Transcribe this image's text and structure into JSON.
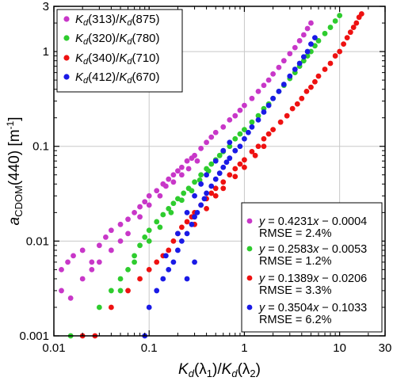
{
  "chart_data": {
    "type": "scatter",
    "xscale": "log",
    "yscale": "log",
    "xlim": [
      0.01,
      30
    ],
    "ylim": [
      0.001,
      3
    ],
    "grid": true,
    "xticks": [
      {
        "value": 0.01,
        "label": "0.01"
      },
      {
        "value": 0.1,
        "label": "0.1"
      },
      {
        "value": 1,
        "label": "1"
      },
      {
        "value": 10,
        "label": "10"
      },
      {
        "value": 30,
        "label": "30"
      }
    ],
    "yticks": [
      {
        "value": 0.001,
        "label": "0.001"
      },
      {
        "value": 0.01,
        "label": "0.01"
      },
      {
        "value": 0.1,
        "label": "0.1"
      },
      {
        "value": 1,
        "label": "1"
      },
      {
        "value": 3,
        "label": "3"
      }
    ],
    "xlabel": {
      "k": "K",
      "d": "d",
      "open": "(λ",
      "one": "1",
      "mid": ")/",
      "two": "2",
      "close": ")"
    },
    "ylabel": {
      "a": "a",
      "sub": "CDOM",
      "rest": "(440) [m",
      "sup": "-1",
      "end": "]"
    },
    "legend_placement": "top-left",
    "series": [
      {
        "legend": {
          "k": "K",
          "d": "d",
          "num": "(313)",
          "slash": "/",
          "den": "(875)"
        },
        "color": "#c837c8",
        "fit": {
          "y": "y",
          "eq_a": " = 0.4231",
          "x": "x",
          "eq_b": " − 0.0004",
          "rmse": "RMSE = 2.4%"
        },
        "points": [
          [
            0.012,
            0.005
          ],
          [
            0.014,
            0.006
          ],
          [
            0.016,
            0.007
          ],
          [
            0.02,
            0.008
          ],
          [
            0.025,
            0.006
          ],
          [
            0.03,
            0.009
          ],
          [
            0.035,
            0.011
          ],
          [
            0.04,
            0.013
          ],
          [
            0.05,
            0.015
          ],
          [
            0.06,
            0.017
          ],
          [
            0.07,
            0.02
          ],
          [
            0.08,
            0.023
          ],
          [
            0.09,
            0.026
          ],
          [
            0.1,
            0.03
          ],
          [
            0.12,
            0.034
          ],
          [
            0.14,
            0.04
          ],
          [
            0.16,
            0.045
          ],
          [
            0.18,
            0.05
          ],
          [
            0.2,
            0.055
          ],
          [
            0.22,
            0.06
          ],
          [
            0.25,
            0.07
          ],
          [
            0.28,
            0.075
          ],
          [
            0.3,
            0.08
          ],
          [
            0.35,
            0.095
          ],
          [
            0.4,
            0.11
          ],
          [
            0.45,
            0.125
          ],
          [
            0.5,
            0.14
          ],
          [
            0.6,
            0.16
          ],
          [
            0.7,
            0.19
          ],
          [
            0.8,
            0.21
          ],
          [
            0.9,
            0.24
          ],
          [
            1.0,
            0.27
          ],
          [
            1.2,
            0.32
          ],
          [
            1.4,
            0.38
          ],
          [
            1.6,
            0.44
          ],
          [
            1.8,
            0.5
          ],
          [
            2.0,
            0.58
          ],
          [
            2.3,
            0.68
          ],
          [
            2.6,
            0.8
          ],
          [
            3.0,
            0.95
          ],
          [
            3.4,
            1.1
          ],
          [
            3.8,
            1.3
          ],
          [
            4.2,
            1.5
          ],
          [
            4.6,
            1.75
          ],
          [
            5.0,
            2.0
          ],
          [
            0.012,
            0.003
          ],
          [
            0.015,
            0.0025
          ],
          [
            0.02,
            0.004
          ],
          [
            0.025,
            0.005
          ],
          [
            0.03,
            0.006
          ],
          [
            0.04,
            0.008
          ],
          [
            0.05,
            0.01
          ],
          [
            0.06,
            0.012
          ],
          [
            0.08,
            0.018
          ],
          [
            0.1,
            0.024
          ],
          [
            0.13,
            0.03
          ],
          [
            0.15,
            0.038
          ],
          [
            0.18,
            0.042
          ],
          [
            0.22,
            0.05
          ],
          [
            0.26,
            0.058
          ],
          [
            0.32,
            0.07
          ]
        ]
      },
      {
        "legend": {
          "k": "K",
          "d": "d",
          "num": "(320)",
          "slash": "/",
          "den": "(780)"
        },
        "color": "#2ecc2e",
        "fit": {
          "y": "y",
          "eq_a": " = 0.2583",
          "x": "x",
          "eq_b": " − 0.0053",
          "rmse": "RMSE = 1.2%"
        },
        "points": [
          [
            0.015,
            0.001
          ],
          [
            0.03,
            0.002
          ],
          [
            0.04,
            0.003
          ],
          [
            0.05,
            0.004
          ],
          [
            0.06,
            0.005
          ],
          [
            0.07,
            0.007
          ],
          [
            0.08,
            0.009
          ],
          [
            0.09,
            0.011
          ],
          [
            0.1,
            0.013
          ],
          [
            0.12,
            0.016
          ],
          [
            0.14,
            0.019
          ],
          [
            0.16,
            0.022
          ],
          [
            0.18,
            0.025
          ],
          [
            0.2,
            0.028
          ],
          [
            0.23,
            0.032
          ],
          [
            0.26,
            0.036
          ],
          [
            0.3,
            0.042
          ],
          [
            0.35,
            0.05
          ],
          [
            0.4,
            0.058
          ],
          [
            0.45,
            0.065
          ],
          [
            0.5,
            0.072
          ],
          [
            0.55,
            0.08
          ],
          [
            0.6,
            0.088
          ],
          [
            0.7,
            0.1
          ],
          [
            0.8,
            0.12
          ],
          [
            0.9,
            0.135
          ],
          [
            1.0,
            0.15
          ],
          [
            1.2,
            0.18
          ],
          [
            1.4,
            0.21
          ],
          [
            1.6,
            0.25
          ],
          [
            1.8,
            0.28
          ],
          [
            2.0,
            0.32
          ],
          [
            2.3,
            0.38
          ],
          [
            2.6,
            0.44
          ],
          [
            3.0,
            0.52
          ],
          [
            3.4,
            0.6
          ],
          [
            3.8,
            0.7
          ],
          [
            4.2,
            0.8
          ],
          [
            4.6,
            0.9
          ],
          [
            5.0,
            1.0
          ],
          [
            5.5,
            1.15
          ],
          [
            6.0,
            1.3
          ],
          [
            7.0,
            1.55
          ],
          [
            8.0,
            1.8
          ],
          [
            9.0,
            2.1
          ],
          [
            10,
            2.4
          ],
          [
            0.05,
            0.003
          ],
          [
            0.07,
            0.006
          ],
          [
            0.1,
            0.01
          ],
          [
            0.13,
            0.014
          ],
          [
            0.17,
            0.02
          ],
          [
            0.22,
            0.027
          ],
          [
            0.28,
            0.034
          ],
          [
            0.34,
            0.044
          ],
          [
            0.42,
            0.055
          ]
        ]
      },
      {
        "legend": {
          "k": "K",
          "d": "d",
          "num": "(340)",
          "slash": "/",
          "den": "(710)"
        },
        "color": "#ee1111",
        "fit": {
          "y": "y",
          "eq_a": " = 0.1389",
          "x": "x",
          "eq_b": " − 0.0206",
          "rmse": "RMSE = 3.3%"
        },
        "points": [
          [
            0.02,
            0.001
          ],
          [
            0.027,
            0.001
          ],
          [
            0.04,
            0.002
          ],
          [
            0.06,
            0.003
          ],
          [
            0.08,
            0.004
          ],
          [
            0.1,
            0.005
          ],
          [
            0.12,
            0.006
          ],
          [
            0.14,
            0.007
          ],
          [
            0.16,
            0.008
          ],
          [
            0.18,
            0.01
          ],
          [
            0.2,
            0.012
          ],
          [
            0.22,
            0.014
          ],
          [
            0.25,
            0.016
          ],
          [
            0.28,
            0.018
          ],
          [
            0.3,
            0.02
          ],
          [
            0.35,
            0.024
          ],
          [
            0.4,
            0.028
          ],
          [
            0.45,
            0.032
          ],
          [
            0.5,
            0.036
          ],
          [
            0.6,
            0.042
          ],
          [
            0.7,
            0.05
          ],
          [
            0.8,
            0.058
          ],
          [
            0.9,
            0.065
          ],
          [
            1.0,
            0.072
          ],
          [
            1.2,
            0.088
          ],
          [
            1.4,
            0.1
          ],
          [
            1.6,
            0.12
          ],
          [
            1.8,
            0.135
          ],
          [
            2.0,
            0.15
          ],
          [
            2.4,
            0.18
          ],
          [
            2.8,
            0.21
          ],
          [
            3.2,
            0.25
          ],
          [
            3.6,
            0.28
          ],
          [
            4.0,
            0.32
          ],
          [
            4.5,
            0.38
          ],
          [
            5.0,
            0.42
          ],
          [
            5.5,
            0.48
          ],
          [
            6.0,
            0.55
          ],
          [
            7.0,
            0.65
          ],
          [
            8.0,
            0.75
          ],
          [
            9.0,
            0.9
          ],
          [
            10,
            1.0
          ],
          [
            11,
            1.2
          ],
          [
            12,
            1.4
          ],
          [
            13,
            1.6
          ],
          [
            14,
            1.8
          ],
          [
            15,
            2.0
          ],
          [
            16,
            2.3
          ],
          [
            17,
            2.5
          ],
          [
            0.3,
            0.015
          ],
          [
            0.4,
            0.022
          ],
          [
            0.5,
            0.03
          ],
          [
            0.6,
            0.036
          ],
          [
            0.8,
            0.048
          ],
          [
            1.0,
            0.06
          ],
          [
            1.3,
            0.08
          ],
          [
            1.6,
            0.1
          ]
        ]
      },
      {
        "legend": {
          "k": "K",
          "d": "d",
          "num": "(412)",
          "slash": "/",
          "den": "(670)"
        },
        "color": "#1a1ae6",
        "fit": {
          "y": "y",
          "eq_a": " = 0.3504",
          "x": "x",
          "eq_b": " − 0.1033",
          "rmse": "RMSE = 6.2%"
        },
        "points": [
          [
            0.09,
            0.001
          ],
          [
            0.1,
            0.002
          ],
          [
            0.12,
            0.003
          ],
          [
            0.14,
            0.004
          ],
          [
            0.16,
            0.005
          ],
          [
            0.18,
            0.006
          ],
          [
            0.2,
            0.008
          ],
          [
            0.22,
            0.01
          ],
          [
            0.25,
            0.012
          ],
          [
            0.28,
            0.015
          ],
          [
            0.3,
            0.018
          ],
          [
            0.32,
            0.02
          ],
          [
            0.35,
            0.024
          ],
          [
            0.38,
            0.028
          ],
          [
            0.4,
            0.032
          ],
          [
            0.45,
            0.038
          ],
          [
            0.5,
            0.045
          ],
          [
            0.55,
            0.052
          ],
          [
            0.6,
            0.06
          ],
          [
            0.65,
            0.068
          ],
          [
            0.7,
            0.075
          ],
          [
            0.8,
            0.09
          ],
          [
            0.9,
            0.1
          ],
          [
            1.0,
            0.12
          ],
          [
            1.1,
            0.14
          ],
          [
            1.2,
            0.16
          ],
          [
            1.4,
            0.19
          ],
          [
            1.6,
            0.23
          ],
          [
            1.8,
            0.27
          ],
          [
            2.0,
            0.32
          ],
          [
            2.3,
            0.38
          ],
          [
            2.6,
            0.45
          ],
          [
            3.0,
            0.55
          ],
          [
            3.4,
            0.65
          ],
          [
            3.8,
            0.75
          ],
          [
            4.2,
            0.88
          ],
          [
            4.6,
            1.0
          ],
          [
            5.0,
            1.2
          ],
          [
            5.5,
            1.4
          ],
          [
            0.15,
            0.007
          ],
          [
            0.2,
            0.012
          ],
          [
            0.25,
            0.02
          ],
          [
            0.3,
            0.03
          ],
          [
            0.35,
            0.04
          ],
          [
            0.4,
            0.05
          ],
          [
            0.5,
            0.07
          ],
          [
            0.6,
            0.09
          ],
          [
            0.7,
            0.11
          ],
          [
            0.3,
            0.006
          ],
          [
            0.25,
            0.004
          ]
        ]
      }
    ]
  }
}
